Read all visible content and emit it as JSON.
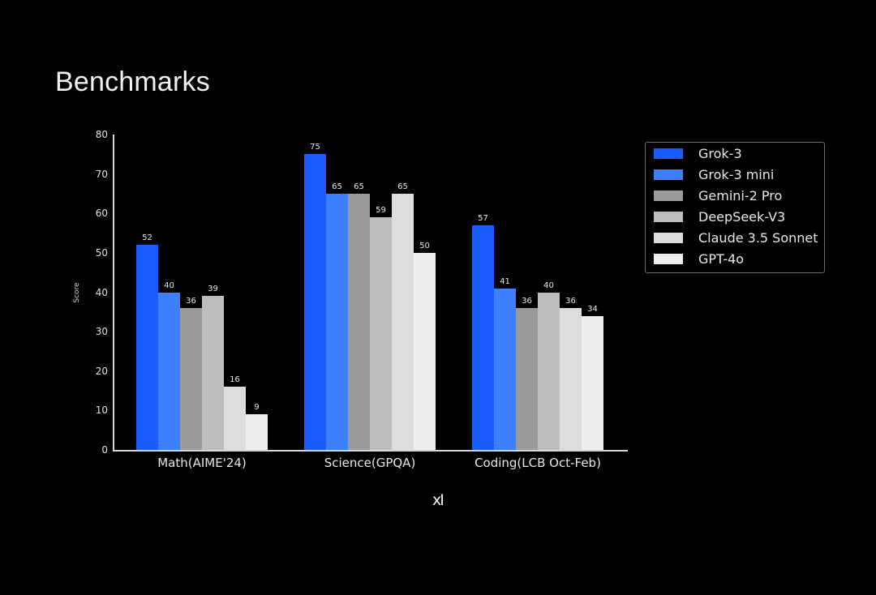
{
  "title": "Benchmarks",
  "logo": "xI",
  "chart_data": {
    "type": "bar",
    "title": "Benchmarks",
    "xlabel": "",
    "ylabel": "Score",
    "ylim": [
      0,
      80
    ],
    "yticks": [
      0,
      10,
      20,
      30,
      40,
      50,
      60,
      70,
      80
    ],
    "grid": false,
    "legend_position": "upper right (outside plot)",
    "categories": [
      "Math(AIME'24)",
      "Science(GPQA)",
      "Coding(LCB Oct-Feb)"
    ],
    "series": [
      {
        "name": "Grok-3",
        "color": "#1a5cff",
        "values": [
          52,
          75,
          57
        ]
      },
      {
        "name": "Grok-3 mini",
        "color": "#3d80ff",
        "values": [
          40,
          65,
          41
        ]
      },
      {
        "name": "Gemini-2 Pro",
        "color": "#9a9a9a",
        "values": [
          36,
          65,
          36
        ]
      },
      {
        "name": "DeepSeek-V3",
        "color": "#bdbdbd",
        "values": [
          39,
          59,
          40
        ]
      },
      {
        "name": "Claude 3.5 Sonnet",
        "color": "#dcdcdc",
        "values": [
          16,
          65,
          36
        ]
      },
      {
        "name": "GPT-4o",
        "color": "#ecefed",
        "values": [
          9,
          50,
          34
        ]
      }
    ]
  }
}
